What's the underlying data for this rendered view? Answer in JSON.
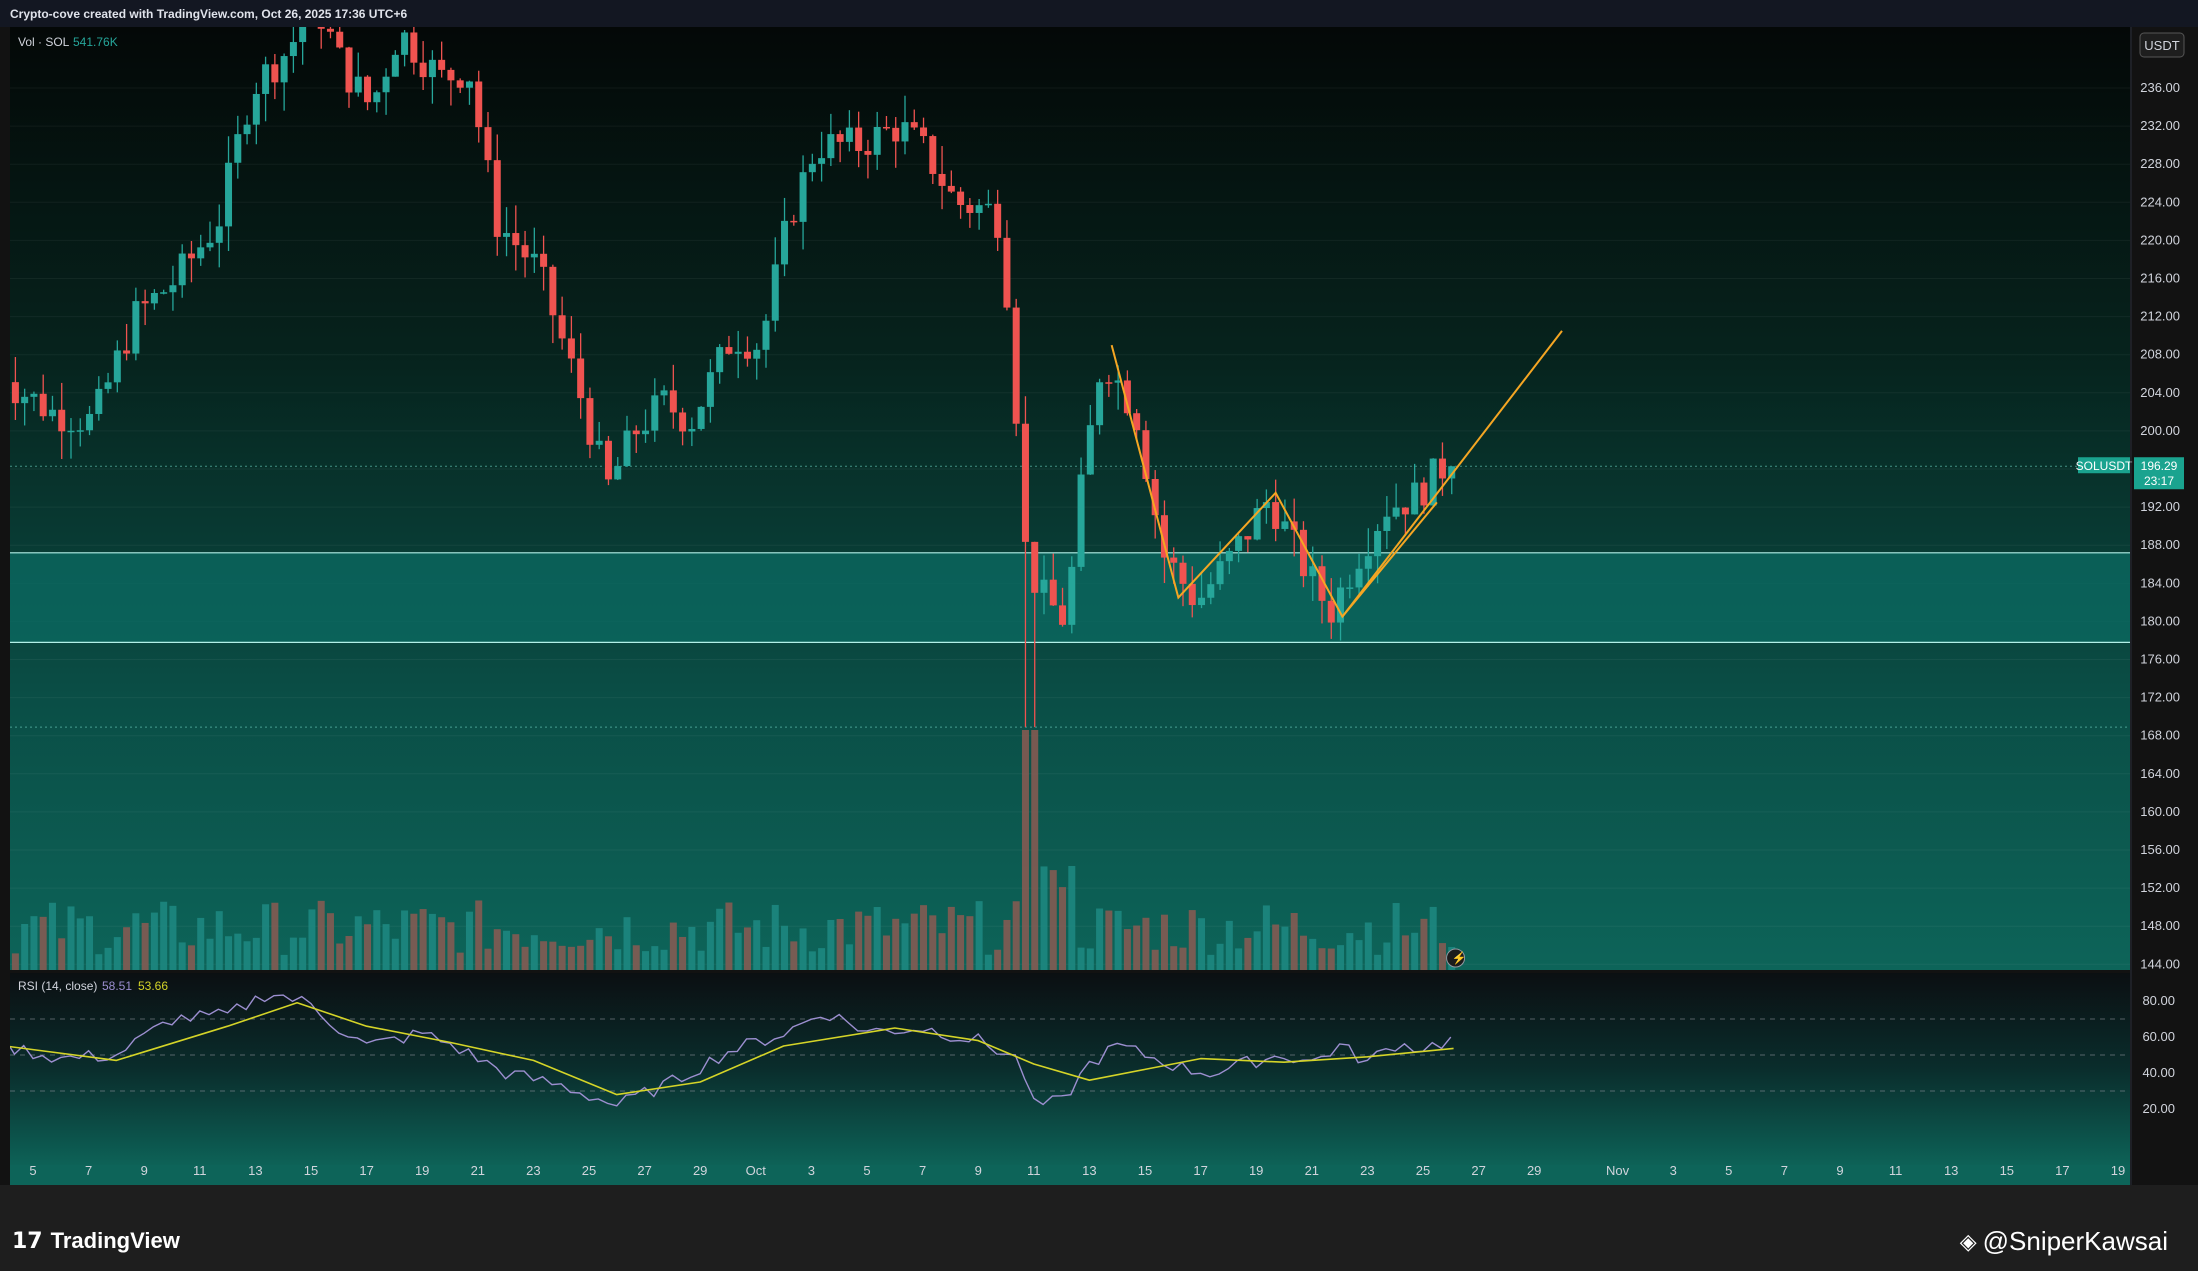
{
  "header": {
    "attribution": "Crypto-cove created with TradingView.com, Oct 26, 2025 17:36 UTC+6"
  },
  "volume_legend": {
    "label": "Vol · SOL",
    "value": "541.76K"
  },
  "currency": "USDT",
  "price_tag": {
    "symbol": "SOLUSDT",
    "price": "196.29",
    "countdown": "23:17"
  },
  "rsi_legend": {
    "label": "RSI (14, close)",
    "rsi": "58.51",
    "ma": "53.66"
  },
  "footer": {
    "brand": "TradingView",
    "watermark": "@SniperKawsai"
  },
  "colors": {
    "up": "#26a69a",
    "down": "#ef5350",
    "volume_up": "#1e8a82",
    "volume_down": "#8b5a52",
    "zone": "#0b6b63",
    "pattern": "#f5a623",
    "rsi_line": "#9c8fd0",
    "rsi_ma": "#d4d428"
  },
  "chart_data": [
    {
      "type": "candlestick",
      "symbol": "SOLUSDT",
      "interval": "8h",
      "y_axis": {
        "ticks": [
          144,
          148,
          152,
          156,
          160,
          164,
          168,
          172,
          176,
          180,
          184,
          188,
          192,
          196,
          200,
          204,
          208,
          212,
          216,
          220,
          224,
          228,
          232,
          236
        ],
        "ylim": [
          144,
          240
        ],
        "side": "right"
      },
      "x_axis": {
        "ticks": [
          "5",
          "7",
          "9",
          "11",
          "13",
          "15",
          "17",
          "19",
          "21",
          "23",
          "25",
          "27",
          "29",
          "Oct",
          "3",
          "5",
          "7",
          "9",
          "11",
          "13",
          "15",
          "17",
          "19",
          "21",
          "23",
          "25",
          "27",
          "29",
          "Nov",
          "3",
          "5",
          "7",
          "9",
          "11",
          "13",
          "15",
          "17",
          "19"
        ]
      },
      "support_zone": [
        177.8,
        187.2
      ],
      "dotted_levels": [
        168.9,
        196.29
      ],
      "pattern_points": [
        {
          "x": "Oct 13.8",
          "y": 209
        },
        {
          "x": "Oct 16.2",
          "y": 182.5
        },
        {
          "x": "Oct 19.7",
          "y": 193.5
        },
        {
          "x": "Oct 22.1",
          "y": 180.5
        },
        {
          "x": "Oct 25.5",
          "y": 192.5
        },
        {
          "x": "Oct 30",
          "y": 210.5
        }
      ],
      "anchors": [
        {
          "date": "Sep 3.8",
          "price": 211
        },
        {
          "date": "Sep 4.5",
          "price": 205
        },
        {
          "date": "Sep 6",
          "price": 202
        },
        {
          "date": "Sep 7.5",
          "price": 201
        },
        {
          "date": "Sep 9",
          "price": 212
        },
        {
          "date": "Sep 10.5",
          "price": 216
        },
        {
          "date": "Sep 12",
          "price": 222
        },
        {
          "date": "Sep 13.2",
          "price": 236
        },
        {
          "date": "Sep 14.5",
          "price": 240
        },
        {
          "date": "Sep 15.5",
          "price": 245
        },
        {
          "date": "Sep 16.5",
          "price": 238
        },
        {
          "date": "Sep 17.5",
          "price": 234
        },
        {
          "date": "Sep 18.5",
          "price": 242
        },
        {
          "date": "Sep 20",
          "price": 237
        },
        {
          "date": "Sep 21",
          "price": 238
        },
        {
          "date": "Sep 22",
          "price": 222
        },
        {
          "date": "Sep 23.5",
          "price": 217
        },
        {
          "date": "Sep 25",
          "price": 204
        },
        {
          "date": "Sep 26",
          "price": 194
        },
        {
          "date": "Sep 27",
          "price": 200
        },
        {
          "date": "Sep 28",
          "price": 203
        },
        {
          "date": "Sep 29",
          "price": 201
        },
        {
          "date": "Sep 30.5",
          "price": 210
        },
        {
          "date": "Oct 1.5",
          "price": 209
        },
        {
          "date": "Oct 2.5",
          "price": 222
        },
        {
          "date": "Oct 3.5",
          "price": 230
        },
        {
          "date": "Oct 5",
          "price": 230
        },
        {
          "date": "Oct 6.5",
          "price": 232
        },
        {
          "date": "Oct 7.5",
          "price": 229
        },
        {
          "date": "Oct 8.5",
          "price": 224
        },
        {
          "date": "Oct 10",
          "price": 223
        },
        {
          "date": "Oct 10.5",
          "price": 212
        },
        {
          "date": "Oct 11",
          "price": 188
        },
        {
          "date": "Oct 11.5",
          "price": 183
        },
        {
          "date": "Oct 12.5",
          "price": 180
        },
        {
          "date": "Oct 13",
          "price": 193
        },
        {
          "date": "Oct 13.8",
          "price": 208
        },
        {
          "date": "Oct 15",
          "price": 202
        },
        {
          "date": "Oct 16",
          "price": 187
        },
        {
          "date": "Oct 17.2",
          "price": 182
        },
        {
          "date": "Oct 18.5",
          "price": 187
        },
        {
          "date": "Oct 19.8",
          "price": 193
        },
        {
          "date": "Oct 21",
          "price": 186
        },
        {
          "date": "Oct 22",
          "price": 181
        },
        {
          "date": "Oct 23",
          "price": 187
        },
        {
          "date": "Oct 24",
          "price": 192
        },
        {
          "date": "Oct 25",
          "price": 193
        },
        {
          "date": "Oct 26.1",
          "price": 196.3
        }
      ],
      "volume": {
        "legend_value": "541.76K",
        "peak_day": "Oct 11"
      },
      "rsi": {
        "period": 14,
        "value": 58.51,
        "ma_value": 53.66,
        "levels": [
          30,
          50,
          70
        ],
        "ticks": [
          20,
          40,
          60,
          80
        ],
        "anchors": [
          {
            "date": "Sep 4",
            "rsi": 55
          },
          {
            "date": "Sep 6",
            "rsi": 48
          },
          {
            "date": "Sep 8",
            "rsi": 50
          },
          {
            "date": "Sep 10",
            "rsi": 70
          },
          {
            "date": "Sep 12",
            "rsi": 72
          },
          {
            "date": "Sep 13.5",
            "rsi": 85
          },
          {
            "date": "Sep 15",
            "rsi": 78
          },
          {
            "date": "Sep 16",
            "rsi": 65
          },
          {
            "date": "Sep 17",
            "rsi": 55
          },
          {
            "date": "Sep 19",
            "rsi": 62
          },
          {
            "date": "Sep 20",
            "rsi": 56
          },
          {
            "date": "Sep 22",
            "rsi": 40
          },
          {
            "date": "Sep 24",
            "rsi": 33
          },
          {
            "date": "Sep 26",
            "rsi": 22
          },
          {
            "date": "Sep 28",
            "rsi": 35
          },
          {
            "date": "Sep 30",
            "rsi": 52
          },
          {
            "date": "Oct 2",
            "rsi": 62
          },
          {
            "date": "Oct 3.5",
            "rsi": 74
          },
          {
            "date": "Oct 5",
            "rsi": 63
          },
          {
            "date": "Oct 7",
            "rsi": 65
          },
          {
            "date": "Oct 9",
            "rsi": 58
          },
          {
            "date": "Oct 10.5",
            "rsi": 47
          },
          {
            "date": "Oct 11",
            "rsi": 22
          },
          {
            "date": "Oct 12",
            "rsi": 24
          },
          {
            "date": "Oct 13",
            "rsi": 45
          },
          {
            "date": "Oct 14",
            "rsi": 55
          },
          {
            "date": "Oct 15",
            "rsi": 50
          },
          {
            "date": "Oct 16.5",
            "rsi": 42
          },
          {
            "date": "Oct 17.5",
            "rsi": 40
          },
          {
            "date": "Oct 19",
            "rsi": 47
          },
          {
            "date": "Oct 20",
            "rsi": 50
          },
          {
            "date": "Oct 21",
            "rsi": 46
          },
          {
            "date": "Oct 22",
            "rsi": 55
          },
          {
            "date": "Oct 23",
            "rsi": 46
          },
          {
            "date": "Oct 24",
            "rsi": 56
          },
          {
            "date": "Oct 25",
            "rsi": 54
          },
          {
            "date": "Oct 26.1",
            "rsi": 58.51
          }
        ],
        "ma_anchors": [
          {
            "date": "Sep 4",
            "rsi": 55
          },
          {
            "date": "Sep 8",
            "rsi": 47
          },
          {
            "date": "Sep 12",
            "rsi": 66
          },
          {
            "date": "Sep 14.5",
            "rsi": 79
          },
          {
            "date": "Sep 17",
            "rsi": 66
          },
          {
            "date": "Sep 20",
            "rsi": 57
          },
          {
            "date": "Sep 23",
            "rsi": 47
          },
          {
            "date": "Sep 26",
            "rsi": 28
          },
          {
            "date": "Sep 29",
            "rsi": 35
          },
          {
            "date": "Oct 2",
            "rsi": 55
          },
          {
            "date": "Oct 6",
            "rsi": 65
          },
          {
            "date": "Oct 9",
            "rsi": 58
          },
          {
            "date": "Oct 11",
            "rsi": 45
          },
          {
            "date": "Oct 13",
            "rsi": 36
          },
          {
            "date": "Oct 15",
            "rsi": 42
          },
          {
            "date": "Oct 17",
            "rsi": 48
          },
          {
            "date": "Oct 20",
            "rsi": 46
          },
          {
            "date": "Oct 23",
            "rsi": 49
          },
          {
            "date": "Oct 26.1",
            "rsi": 53.66
          }
        ]
      }
    }
  ]
}
